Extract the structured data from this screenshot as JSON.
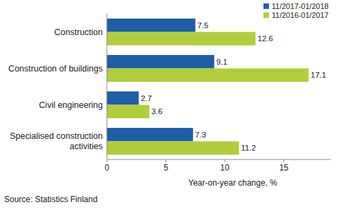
{
  "chart_data": {
    "type": "bar",
    "orientation": "horizontal",
    "categories": [
      "Construction",
      "Construction of buildings",
      "Civil engineering",
      "Specialised construction activities"
    ],
    "series": [
      {
        "name": "11/2017-01/2018",
        "color": "#1f5ea8",
        "values": [
          7.5,
          9.1,
          2.7,
          7.3
        ]
      },
      {
        "name": "11/2016-01/2017",
        "color": "#b1cd3c",
        "values": [
          12.6,
          17.1,
          3.6,
          11.2
        ]
      }
    ],
    "x_label": "Year-on-year change, %",
    "xlim": [
      0,
      19
    ],
    "xticks": [
      0,
      5,
      10,
      15
    ],
    "grid": false,
    "legend": "top-right",
    "data_labels": true,
    "annotations": [
      "Source: Statistics Finland"
    ]
  }
}
